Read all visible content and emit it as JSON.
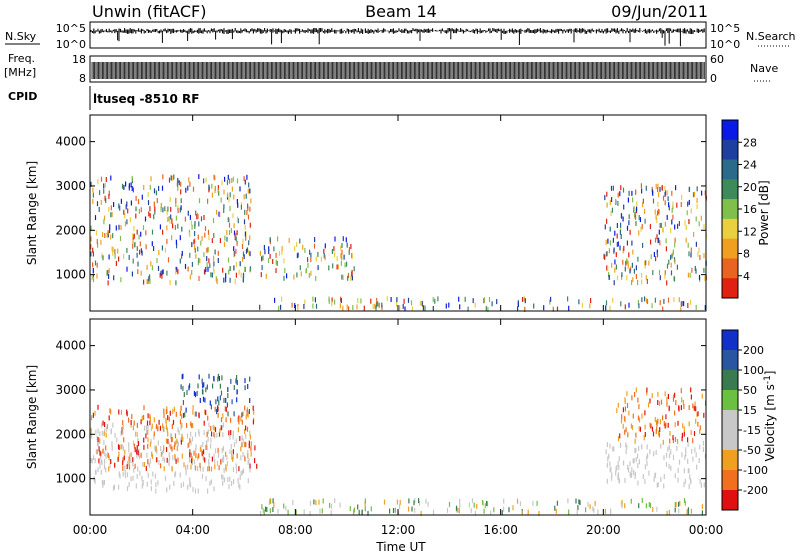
{
  "header": {
    "station": "Unwin (fitACF)",
    "beam": "Beam 14",
    "date": "09/Jun/2011"
  },
  "strips": {
    "nsky_label": "N.Sky",
    "nsky_ticks": [
      "10^5",
      "10^0"
    ],
    "nsky_right_ticks": [
      "10^5",
      "10^0"
    ],
    "nsearch_label": "N.Search",
    "freq_label_1": "Freq.",
    "freq_label_2": "[MHz]",
    "freq_ticks": [
      "18",
      "8"
    ],
    "nave_ticks": [
      "60",
      "0"
    ],
    "nave_label": "Nave",
    "cpid_label": "CPID",
    "cpid_value": "ltuseq -8510 RF"
  },
  "axes": {
    "ylabel": "Slant Range [km]",
    "yticks": [
      "4000",
      "3000",
      "2000",
      "1000"
    ],
    "xticks": [
      "00:00",
      "04:00",
      "08:00",
      "12:00",
      "16:00",
      "20:00",
      "00:00"
    ],
    "xlabel": "Time UT"
  },
  "colors": {
    "power_scale": [
      "#0a19e6",
      "#1e3fa0",
      "#2a6a8a",
      "#3d8a5a",
      "#7fc04a",
      "#e8d040",
      "#f0a020",
      "#e86420",
      "#e02010"
    ],
    "velocity_scale": [
      "#1030c8",
      "#2a55a0",
      "#3a7a50",
      "#6ac040",
      "#c8c8c8",
      "#c8c8c8",
      "#f0a020",
      "#f07020",
      "#e01010"
    ]
  },
  "chart_data": [
    {
      "type": "heatmap",
      "title": "Power",
      "ylabel": "Slant Range [km]",
      "xlabel": "Time UT",
      "x_range_hours_ut": [
        0,
        24
      ],
      "ylim": [
        180,
        4600
      ],
      "colorbar": {
        "label": "Power [dB]",
        "ticks": [
          "28",
          "24",
          "20",
          "16",
          "12",
          "8",
          "4"
        ],
        "range": [
          0,
          32
        ]
      },
      "regions": [
        {
          "t_start": 0.0,
          "t_end": 6.3,
          "range_km": [
            800,
            1700
          ],
          "power_db": "8-24"
        },
        {
          "t_start": 0.0,
          "t_end": 6.3,
          "range_km": [
            1700,
            3200
          ],
          "power_db": "4-20"
        },
        {
          "t_start": 6.6,
          "t_end": 10.3,
          "range_km": [
            900,
            1800
          ],
          "power_db": "4-16"
        },
        {
          "t_start": 6.5,
          "t_end": 24.0,
          "range_km": [
            200,
            450
          ],
          "power_db": "4-20"
        },
        {
          "t_start": 20.0,
          "t_end": 24.0,
          "range_km": [
            800,
            3000
          ],
          "power_db": "4-28"
        }
      ]
    },
    {
      "type": "heatmap",
      "title": "Velocity",
      "ylabel": "Slant Range [km]",
      "xlabel": "Time UT",
      "x_range_hours_ut": [
        0,
        24
      ],
      "ylim": [
        180,
        4600
      ],
      "colorbar": {
        "label": "Velocity [m s^-1]",
        "ticks": [
          "200",
          "100",
          "50",
          "15",
          "-15",
          "-50",
          "-100",
          "-200"
        ],
        "range": [
          -250,
          250
        ]
      },
      "regions": [
        {
          "t_start": 0.0,
          "t_end": 6.3,
          "range_km": [
            700,
            2200
          ],
          "velocity": "-15 to 15"
        },
        {
          "t_start": 3.5,
          "t_end": 6.3,
          "range_km": [
            2400,
            3300
          ],
          "velocity": "50 to 200"
        },
        {
          "t_start": 0.0,
          "t_end": 6.5,
          "range_km": [
            1200,
            2600
          ],
          "velocity": "-200 to -50"
        },
        {
          "t_start": 6.5,
          "t_end": 24.0,
          "range_km": [
            200,
            500
          ],
          "velocity": "-100 to 100"
        },
        {
          "t_start": 20.5,
          "t_end": 24.0,
          "range_km": [
            1800,
            3000
          ],
          "velocity": "-200 to -50"
        },
        {
          "t_start": 20.0,
          "t_end": 24.0,
          "range_km": [
            800,
            1800
          ],
          "velocity": "-15 to 15"
        }
      ]
    }
  ]
}
